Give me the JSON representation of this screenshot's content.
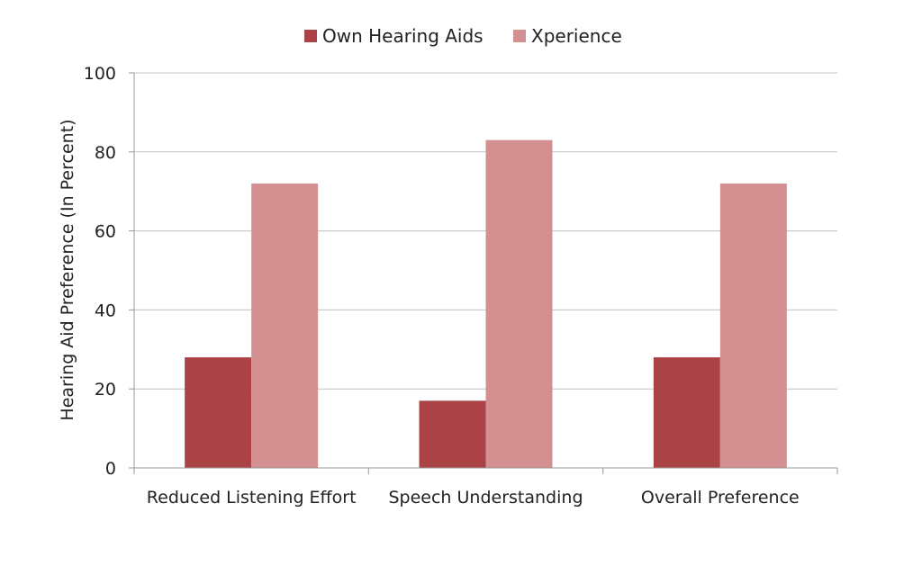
{
  "chart_data": {
    "type": "bar",
    "title": "",
    "xlabel": "",
    "ylabel": "Hearing Aid Preference (In Percent)",
    "categories": [
      "Reduced Listening Effort",
      "Speech Understanding",
      "Overall Preference"
    ],
    "series": [
      {
        "name": "Own Hearing Aids",
        "values": [
          28,
          17,
          28
        ],
        "color": "#ab4346"
      },
      {
        "name": "Xperience",
        "values": [
          72,
          83,
          72
        ],
        "color": "#d49090"
      }
    ],
    "ylim": [
      0,
      100
    ],
    "yticks": [
      "0",
      "20",
      "40",
      "60",
      "80",
      "100"
    ],
    "grid": true,
    "gridColor": "#c0c0c0",
    "legend_position": "top-center"
  }
}
